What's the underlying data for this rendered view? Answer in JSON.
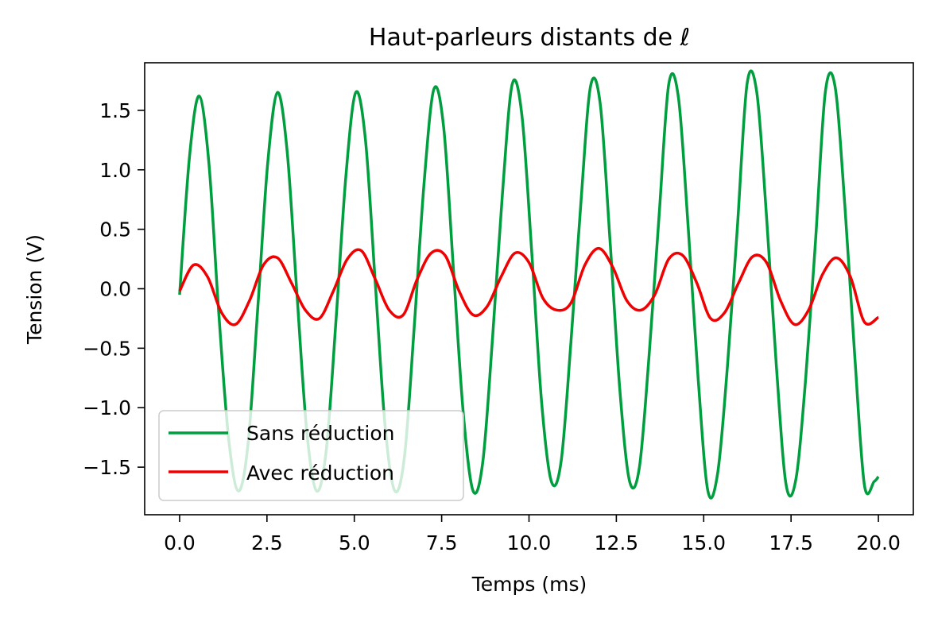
{
  "chart_data": {
    "type": "line",
    "title": "Haut-parleurs distants de ℓ",
    "xlabel": "Temps (ms)",
    "ylabel": "Tension (V)",
    "xlim": [
      -1.0,
      21.0
    ],
    "ylim": [
      -1.9,
      1.9
    ],
    "xticks": [
      0.0,
      2.5,
      5.0,
      7.5,
      10.0,
      12.5,
      15.0,
      17.5,
      20.0
    ],
    "xtick_labels": [
      "0.0",
      "2.5",
      "5.0",
      "7.5",
      "10.0",
      "12.5",
      "15.0",
      "17.5",
      "20.0"
    ],
    "yticks": [
      1.5,
      1.0,
      0.5,
      0.0,
      -0.5,
      -1.0,
      -1.5
    ],
    "ytick_labels": [
      "1.5",
      "1.0",
      "0.5",
      "0.0",
      "−0.5",
      "−1.0",
      "−1.5"
    ],
    "grid": false,
    "legend_position": "lower-left",
    "series": [
      {
        "name": "Sans réduction",
        "color": "#009e3f",
        "x": [
          0.0,
          0.28,
          0.56,
          0.84,
          1.12,
          1.4,
          1.68,
          1.96,
          2.24,
          2.52,
          2.8,
          3.08,
          3.36,
          3.64,
          3.92,
          4.2,
          4.48,
          4.76,
          5.04,
          5.32,
          5.6,
          5.88,
          6.16,
          6.44,
          6.72,
          7.0,
          7.28,
          7.56,
          7.84,
          8.12,
          8.4,
          8.68,
          8.96,
          9.24,
          9.52,
          9.8,
          10.08,
          10.36,
          10.64,
          10.92,
          11.2,
          11.48,
          11.76,
          12.04,
          12.32,
          12.6,
          12.88,
          13.16,
          13.44,
          13.72,
          14.0,
          14.28,
          14.56,
          14.84,
          15.12,
          15.4,
          15.68,
          15.96,
          16.24,
          16.52,
          16.8,
          17.08,
          17.36,
          17.64,
          17.92,
          18.2,
          18.48,
          18.76,
          19.04,
          19.32,
          19.6,
          19.88,
          20.0
        ],
        "y": [
          -0.05,
          1.1,
          1.62,
          1.05,
          -0.2,
          -1.25,
          -1.7,
          -1.3,
          -0.15,
          1.05,
          1.65,
          1.15,
          -0.05,
          -1.2,
          -1.7,
          -1.35,
          -0.25,
          0.95,
          1.65,
          1.25,
          0.05,
          -1.15,
          -1.7,
          -1.4,
          -0.3,
          0.9,
          1.68,
          1.35,
          0.15,
          -1.05,
          -1.7,
          -1.45,
          -0.4,
          0.8,
          1.72,
          1.45,
          0.3,
          -0.95,
          -1.62,
          -1.45,
          -0.45,
          0.7,
          1.7,
          1.55,
          0.4,
          -0.85,
          -1.62,
          -1.5,
          -0.55,
          0.6,
          1.72,
          1.6,
          0.5,
          -0.75,
          -1.7,
          -1.55,
          -0.65,
          0.5,
          1.72,
          1.65,
          0.6,
          -0.65,
          -1.65,
          -1.6,
          -0.75,
          0.4,
          1.65,
          1.7,
          0.7,
          -0.55,
          -1.65,
          -1.62,
          -1.58
        ]
      },
      {
        "name": "Avec réduction",
        "color": "#f00000",
        "x": [
          0.0,
          0.4,
          0.8,
          1.2,
          1.6,
          2.0,
          2.4,
          2.8,
          3.2,
          3.6,
          4.0,
          4.4,
          4.8,
          5.2,
          5.6,
          6.0,
          6.4,
          6.8,
          7.2,
          7.6,
          8.0,
          8.4,
          8.8,
          9.2,
          9.6,
          10.0,
          10.4,
          10.8,
          11.2,
          11.6,
          12.0,
          12.4,
          12.8,
          13.2,
          13.6,
          14.0,
          14.4,
          14.8,
          15.2,
          15.6,
          16.0,
          16.4,
          16.8,
          17.2,
          17.6,
          18.0,
          18.4,
          18.8,
          19.2,
          19.6,
          20.0
        ],
        "y": [
          -0.02,
          0.2,
          0.1,
          -0.2,
          -0.3,
          -0.1,
          0.2,
          0.26,
          0.05,
          -0.18,
          -0.25,
          -0.02,
          0.25,
          0.32,
          0.08,
          -0.18,
          -0.22,
          0.08,
          0.3,
          0.28,
          -0.02,
          -0.22,
          -0.15,
          0.1,
          0.3,
          0.22,
          -0.08,
          -0.18,
          -0.12,
          0.2,
          0.34,
          0.18,
          -0.1,
          -0.18,
          -0.05,
          0.25,
          0.28,
          0.05,
          -0.25,
          -0.2,
          0.05,
          0.27,
          0.22,
          -0.1,
          -0.3,
          -0.18,
          0.12,
          0.26,
          0.1,
          -0.28,
          -0.24
        ]
      }
    ]
  }
}
